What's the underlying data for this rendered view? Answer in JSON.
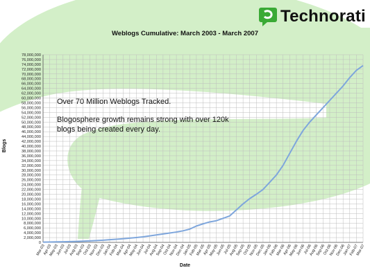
{
  "brand": {
    "name": "Technorati",
    "icon": "speech-bubble-icon",
    "color": "#3aaa35"
  },
  "annotations": {
    "headline": "Over 70 Million Weblogs Tracked.",
    "detail": "Blogosphere growth remains strong with over 120k blogs being created every day."
  },
  "colors": {
    "line": "#7ea6dc",
    "swoosh": "#d3efc8",
    "grid": "#bdbdbd"
  },
  "chart_data": {
    "type": "line",
    "title": "Weblogs Cumulative: March 2003 - March 2007",
    "xlabel": "Date",
    "ylabel": "Blogs",
    "ylim": [
      0,
      78000000
    ],
    "grid": true,
    "categories": [
      "Mar-03",
      "Apr-03",
      "May-03",
      "Jun-03",
      "Jul-03",
      "Aug-03",
      "Sep-03",
      "Oct-03",
      "Nov-03",
      "Dec-03",
      "Jan-04",
      "Feb-04",
      "Mar-04",
      "Apr-04",
      "May-04",
      "Jun-04",
      "Jul-04",
      "Aug-04",
      "Sep-04",
      "Oct-04",
      "Nov-04",
      "Dec-04",
      "Jan-05",
      "Feb-05",
      "Mar-05",
      "Apr-05",
      "May-05",
      "Jun-05",
      "Jul-05",
      "Aug-05",
      "Sep-05",
      "Oct-05",
      "Nov-05",
      "Dec-05",
      "Jan-06",
      "Feb-06",
      "Mar-06",
      "Apr-06",
      "May-06",
      "Jun-06",
      "Jul-06",
      "Aug-06",
      "Sep-06",
      "Oct-06",
      "Nov-06",
      "Dec-06",
      "Jan-07",
      "Feb-07",
      "Mar-07"
    ],
    "yticks": [
      "0",
      "2,000,000",
      "4,000,000",
      "6,000,000",
      "8,000,000",
      "10,000,000",
      "12,000,000",
      "14,000,000",
      "16,000,000",
      "18,000,000",
      "20,000,000",
      "22,000,000",
      "24,000,000",
      "26,000,000",
      "28,000,000",
      "30,000,000",
      "32,000,000",
      "34,000,000",
      "36,000,000",
      "38,000,000",
      "40,000,000",
      "42,000,000",
      "44,000,000",
      "46,000,000",
      "48,000,000",
      "50,000,000",
      "52,000,000",
      "54,000,000",
      "56,000,000",
      "58,000,000",
      "60,000,000",
      "62,000,000",
      "64,000,000",
      "66,000,000",
      "68,000,000",
      "70,000,000",
      "72,000,000",
      "74,000,000",
      "76,000,000",
      "78,000,000"
    ],
    "series": [
      {
        "values": [
          100000,
          150000,
          200000,
          260000,
          330000,
          410000,
          500000,
          620000,
          750000,
          900000,
          1100000,
          1300000,
          1500000,
          1750000,
          2000000,
          2300000,
          2700000,
          3100000,
          3500000,
          3900000,
          4300000,
          4800000,
          5500000,
          6800000,
          7700000,
          8500000,
          9000000,
          10000000,
          11000000,
          13500000,
          16000000,
          18200000,
          20000000,
          22000000,
          25000000,
          28000000,
          32000000,
          37000000,
          42000000,
          46500000,
          50000000,
          53000000,
          56000000,
          59000000,
          62000000,
          65000000,
          68500000,
          71500000,
          73500000
        ]
      }
    ]
  }
}
